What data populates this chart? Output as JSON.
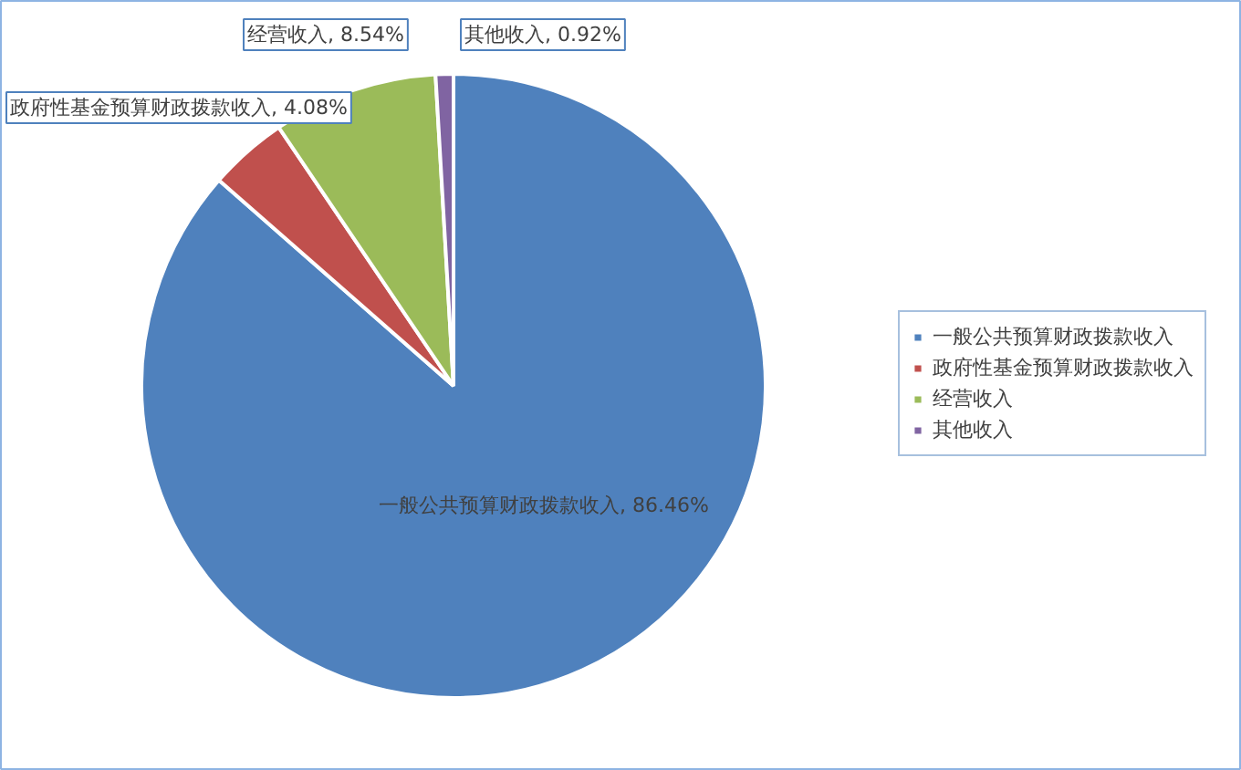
{
  "chart_data": {
    "type": "pie",
    "categories": [
      "一般公共预算财政拨款收入",
      "政府性基金预算财政拨款收入",
      "经营收入",
      "其他收入"
    ],
    "values": [
      86.46,
      4.08,
      8.54,
      0.92
    ],
    "colors": [
      "#4f81bd",
      "#c0504d",
      "#9bbb59",
      "#8064a2"
    ],
    "value_labels": [
      "一般公共预算财政拨款收入, 86.46%",
      "政府性基金预算财政拨款收入, 4.08%",
      "经营收入, 8.54%",
      "其他收入, 0.92%"
    ],
    "legend": "right"
  }
}
